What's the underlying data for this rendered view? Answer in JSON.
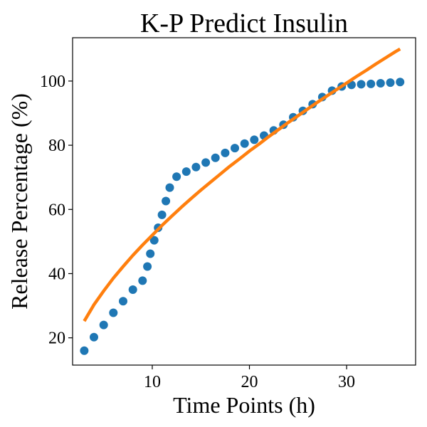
{
  "chart_data": {
    "type": "scatter",
    "title": "K-P Predict Insulin",
    "xlabel": "Time Points (h)",
    "ylabel": "Release Percentage (%)",
    "xlim": [
      1.8,
      37.1
    ],
    "ylim": [
      11.5,
      113.5
    ],
    "x_ticks": [
      10,
      20,
      30
    ],
    "y_ticks": [
      20,
      40,
      60,
      80,
      100
    ],
    "grid": false,
    "legend": "none",
    "series": [
      {
        "kind": "scatter",
        "color": "#1f77b4",
        "x": [
          3,
          4,
          5,
          6,
          7,
          8,
          9,
          9.5,
          9.8,
          10.2,
          10.6,
          11,
          11.4,
          11.8,
          12.5,
          13.5,
          14.5,
          15.5,
          16.5,
          17.5,
          18.5,
          19.5,
          20.5,
          21.5,
          22.5,
          23.5,
          24.5,
          25.5,
          26.5,
          27.5,
          28.5,
          29.5,
          30.5,
          31.5,
          32.5,
          33.5,
          34.5,
          35.5
        ],
        "y": [
          16,
          20.2,
          24,
          27.8,
          31.4,
          35,
          37.8,
          42.2,
          46.2,
          50.4,
          54.3,
          58.3,
          62.6,
          66.8,
          70.2,
          71.8,
          73.2,
          74.6,
          76.1,
          77.6,
          79.1,
          80.5,
          81.7,
          83,
          84.6,
          86.4,
          88.7,
          90.7,
          92.8,
          95,
          97,
          98.3,
          98.8,
          99,
          99.1,
          99.3,
          99.5,
          99.7
        ]
      },
      {
        "kind": "line",
        "color": "#ff7f0e",
        "x": [
          3,
          4,
          5,
          6,
          7,
          8,
          9,
          10,
          11,
          12,
          13,
          14,
          15,
          16,
          17,
          18,
          19,
          20,
          21,
          22,
          23,
          24,
          25,
          26,
          27,
          28,
          29,
          30,
          31,
          32,
          33,
          34,
          35,
          35.5
        ],
        "y": [
          25.2,
          30.3,
          34.6,
          38.6,
          42.2,
          45.7,
          48.9,
          52.0,
          55.0,
          57.9,
          60.7,
          63.4,
          66.0,
          68.5,
          71.0,
          73.5,
          75.8,
          78.2,
          80.4,
          82.7,
          84.9,
          87.1,
          89.2,
          91.3,
          93.4,
          95.4,
          97.4,
          99.4,
          101.4,
          103.3,
          105.3,
          107.2,
          109.1,
          110.0
        ]
      }
    ]
  }
}
